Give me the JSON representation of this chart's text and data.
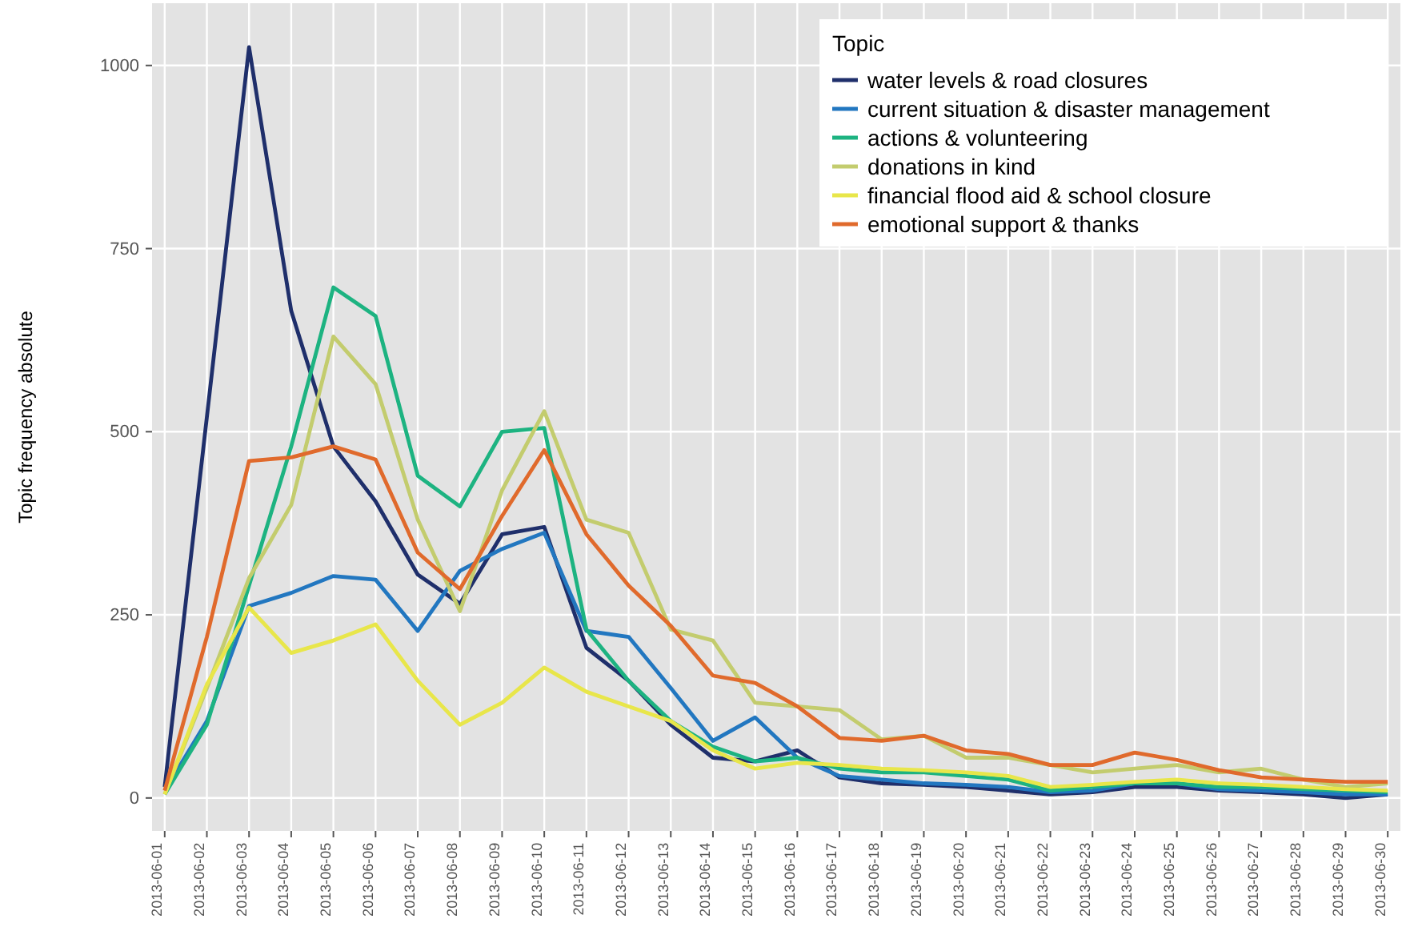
{
  "chart_data": {
    "type": "line",
    "ylabel": "Topic frequency absolute",
    "legend_title": "Topic",
    "legend": "top right",
    "grid": true,
    "categories": [
      "2013-06-01",
      "2013-06-02",
      "2013-06-03",
      "2013-06-04",
      "2013-06-05",
      "2013-06-06",
      "2013-06-07",
      "2013-06-08",
      "2013-06-09",
      "2013-06-10",
      "2013-06-11",
      "2013-06-12",
      "2013-06-13",
      "2013-06-14",
      "2013-06-15",
      "2013-06-16",
      "2013-06-17",
      "2013-06-18",
      "2013-06-19",
      "2013-06-20",
      "2013-06-21",
      "2013-06-22",
      "2013-06-23",
      "2013-06-24",
      "2013-06-25",
      "2013-06-26",
      "2013-06-27",
      "2013-06-28",
      "2013-06-29",
      "2013-06-30"
    ],
    "ylim": [
      -45,
      1085
    ],
    "yticks": [
      0,
      250,
      500,
      750,
      1000
    ],
    "series": [
      {
        "name": "water levels & road closures",
        "color": "#1f2f6b",
        "values": [
          15,
          520,
          1025,
          665,
          480,
          405,
          305,
          265,
          360,
          370,
          205,
          160,
          100,
          55,
          50,
          65,
          28,
          20,
          18,
          15,
          10,
          5,
          8,
          15,
          15,
          10,
          8,
          5,
          0,
          5
        ]
      },
      {
        "name": "current situation & disaster management",
        "color": "#2277c0",
        "values": [
          10,
          105,
          262,
          280,
          303,
          298,
          228,
          310,
          340,
          362,
          228,
          220,
          150,
          78,
          110,
          55,
          30,
          25,
          20,
          18,
          15,
          8,
          10,
          20,
          20,
          12,
          10,
          8,
          5,
          5
        ]
      },
      {
        "name": "actions & volunteering",
        "color": "#1db381",
        "values": [
          5,
          100,
          290,
          480,
          697,
          658,
          440,
          398,
          500,
          505,
          230,
          160,
          105,
          70,
          50,
          55,
          40,
          35,
          35,
          30,
          25,
          10,
          15,
          20,
          20,
          15,
          15,
          12,
          10,
          8
        ]
      },
      {
        "name": "donations in kind",
        "color": "#c3cc6e",
        "values": [
          5,
          150,
          300,
          400,
          630,
          565,
          380,
          255,
          420,
          528,
          380,
          362,
          230,
          215,
          130,
          125,
          120,
          80,
          85,
          55,
          55,
          45,
          35,
          40,
          45,
          35,
          40,
          25,
          15,
          20
        ]
      },
      {
        "name": "financial flood aid & school closure",
        "color": "#e8e64a",
        "values": [
          5,
          155,
          260,
          198,
          215,
          237,
          160,
          100,
          130,
          178,
          145,
          125,
          105,
          65,
          40,
          48,
          45,
          40,
          38,
          35,
          30,
          15,
          18,
          22,
          25,
          20,
          18,
          15,
          12,
          10
        ]
      },
      {
        "name": "emotional support & thanks",
        "color": "#e06a2c",
        "values": [
          10,
          220,
          460,
          465,
          480,
          462,
          335,
          285,
          385,
          475,
          360,
          290,
          235,
          167,
          157,
          125,
          82,
          78,
          85,
          65,
          60,
          45,
          45,
          62,
          52,
          38,
          28,
          25,
          22,
          22
        ]
      }
    ]
  }
}
